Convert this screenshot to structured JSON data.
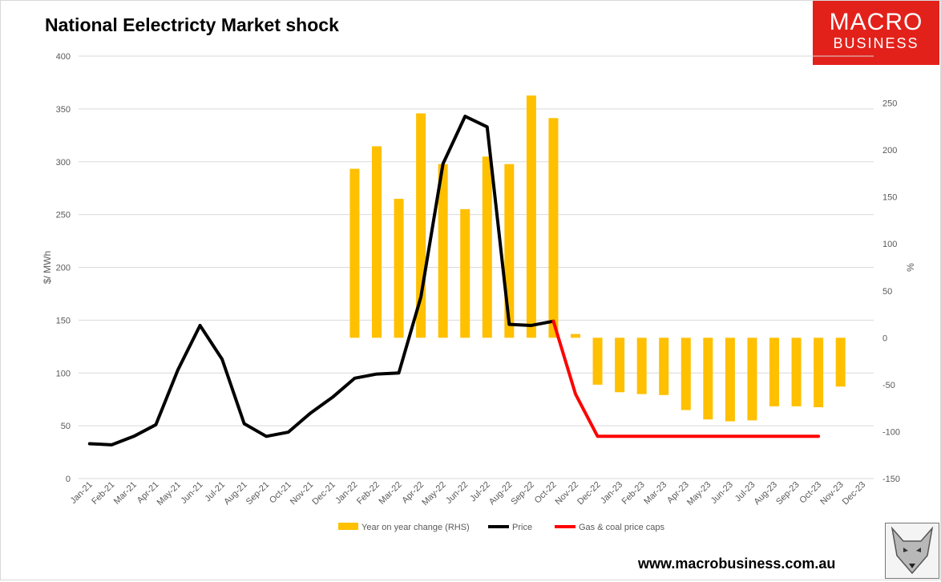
{
  "header": {
    "title": "National Eelectricty Market shock",
    "logo_line1": "MACRO",
    "logo_line2": "BUSINESS"
  },
  "footer": {
    "url": "www.macrobusiness.com.au"
  },
  "colors": {
    "bars": "#ffc000",
    "price": "#000000",
    "caps": "#ff0000",
    "grid": "#d9d9d9",
    "logo_bg": "#e3211b"
  },
  "chart_data": {
    "type": "bar",
    "title": "National Eelectricty Market shock",
    "ylabel": "$/ MWh",
    "y2label": "%",
    "ylim": [
      0,
      400
    ],
    "y2lim": [
      -150,
      300
    ],
    "yticks": [
      0,
      50,
      100,
      150,
      200,
      250,
      300,
      350,
      400
    ],
    "y2ticks": [
      -150,
      -100,
      -50,
      0,
      50,
      100,
      150,
      200,
      250
    ],
    "grid": true,
    "legend_position": "bottom",
    "categories": [
      "Jan-21",
      "Feb-21",
      "Mar-21",
      "Apr-21",
      "May-21",
      "Jun-21",
      "Jul-21",
      "Aug-21",
      "Sep-21",
      "Oct-21",
      "Nov-21",
      "Dec-21",
      "Jan-22",
      "Feb-22",
      "Mar-22",
      "Apr-22",
      "May-22",
      "Jun-22",
      "Jul-22",
      "Aug-22",
      "Sep-22",
      "Oct-22",
      "Nov-22",
      "Dec-22",
      "Jan-23",
      "Feb-23",
      "Mar-23",
      "Apr-23",
      "May-23",
      "Jun-23",
      "Jul-23",
      "Aug-23",
      "Sep-23",
      "Oct-23",
      "Nov-23",
      "Dec-23"
    ],
    "series": [
      {
        "name": "Year on year change (RHS)",
        "type": "bar",
        "axis": "right",
        "values": [
          null,
          null,
          null,
          null,
          null,
          null,
          null,
          null,
          null,
          null,
          null,
          null,
          180,
          204,
          148,
          239,
          185,
          137,
          193,
          185,
          258,
          234,
          4,
          -50,
          -58,
          -60,
          -61,
          -77,
          -87,
          -89,
          -88,
          -73,
          -73,
          -74,
          -52,
          null
        ]
      },
      {
        "name": "Price",
        "type": "line",
        "axis": "left",
        "values": [
          33,
          32,
          40,
          51,
          103,
          145,
          113,
          52,
          40,
          44,
          62,
          77,
          95,
          99,
          100,
          172,
          298,
          343,
          333,
          146,
          145,
          149,
          null,
          null,
          null,
          null,
          null,
          null,
          null,
          null,
          null,
          null,
          null,
          null,
          null,
          null
        ]
      },
      {
        "name": "Gas & coal price caps",
        "type": "line",
        "axis": "left",
        "values": [
          null,
          null,
          null,
          null,
          null,
          null,
          null,
          null,
          null,
          null,
          null,
          null,
          null,
          null,
          null,
          null,
          null,
          null,
          null,
          null,
          null,
          149,
          80,
          40,
          40,
          40,
          40,
          40,
          40,
          40,
          40,
          40,
          40,
          40,
          null,
          null
        ]
      }
    ]
  }
}
